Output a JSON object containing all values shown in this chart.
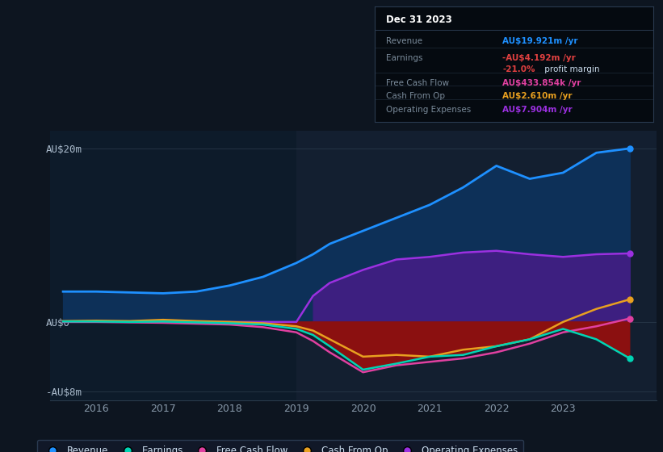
{
  "bg_color": "#0d1520",
  "plot_bg_color": "#0d1b2a",
  "highlight_bg": "#131f30",
  "grid_color": "#2a3a4a",
  "title": "Dec 31 2023",
  "years": [
    2015.5,
    2016.0,
    2016.5,
    2017.0,
    2017.5,
    2018.0,
    2018.5,
    2019.0,
    2019.25,
    2019.5,
    2020.0,
    2020.5,
    2021.0,
    2021.5,
    2022.0,
    2022.5,
    2023.0,
    2023.5,
    2024.0
  ],
  "revenue": [
    3.5,
    3.5,
    3.4,
    3.3,
    3.5,
    4.2,
    5.2,
    6.8,
    7.8,
    9.0,
    10.5,
    12.0,
    13.5,
    15.5,
    18.0,
    16.5,
    17.2,
    19.5,
    20.0
  ],
  "earnings": [
    0.05,
    0.05,
    0.0,
    0.05,
    -0.05,
    -0.15,
    -0.3,
    -0.8,
    -1.5,
    -2.8,
    -5.5,
    -4.8,
    -4.0,
    -3.8,
    -2.8,
    -2.0,
    -0.8,
    -2.0,
    -4.2
  ],
  "free_cash_flow": [
    0.0,
    0.0,
    -0.05,
    -0.1,
    -0.2,
    -0.3,
    -0.6,
    -1.2,
    -2.2,
    -3.5,
    -5.8,
    -5.0,
    -4.6,
    -4.2,
    -3.5,
    -2.5,
    -1.2,
    -0.5,
    0.4
  ],
  "cash_from_op": [
    0.1,
    0.15,
    0.1,
    0.25,
    0.1,
    0.0,
    -0.15,
    -0.5,
    -1.0,
    -2.0,
    -4.0,
    -3.8,
    -4.0,
    -3.2,
    -2.8,
    -2.0,
    0.0,
    1.5,
    2.6
  ],
  "op_expenses": [
    0.0,
    0.0,
    0.0,
    0.0,
    0.0,
    0.0,
    0.0,
    0.0,
    3.0,
    4.5,
    6.0,
    7.2,
    7.5,
    8.0,
    8.2,
    7.8,
    7.5,
    7.8,
    7.9
  ],
  "ylim": [
    -9,
    22
  ],
  "yticks": [
    -8,
    0,
    20
  ],
  "ytick_labels": [
    "-AU$8m",
    "AU$0",
    "AU$20m"
  ],
  "xticks": [
    2016,
    2017,
    2018,
    2019,
    2020,
    2021,
    2022,
    2023
  ],
  "highlight_start": 2019.0,
  "highlight_end": 2024.5,
  "xlim_left": 2015.3,
  "xlim_right": 2024.4,
  "revenue_color": "#1e90ff",
  "earnings_color": "#00d4b4",
  "free_cash_flow_color": "#e040a0",
  "cash_from_op_color": "#e8a020",
  "op_expenses_color": "#9b30e0",
  "op_expenses_fill_color": "#3d1f80",
  "earnings_fill_color": "#8b1010",
  "revenue_fill_color": "#0d3058",
  "legend_bg": "#111828",
  "legend_border": "#2a3a50",
  "info_bg": "#050a10",
  "info_border": "#2a3a50",
  "info_title_color": "#ffffff",
  "info_label_color": "#7a8a9a",
  "info_text_color": "#ccddee",
  "revenue_info_color": "#1e90ff",
  "earnings_info_color": "#e04040",
  "fcf_info_color": "#e040a0",
  "cashop_info_color": "#e8a020",
  "opex_info_color": "#9b30e0"
}
